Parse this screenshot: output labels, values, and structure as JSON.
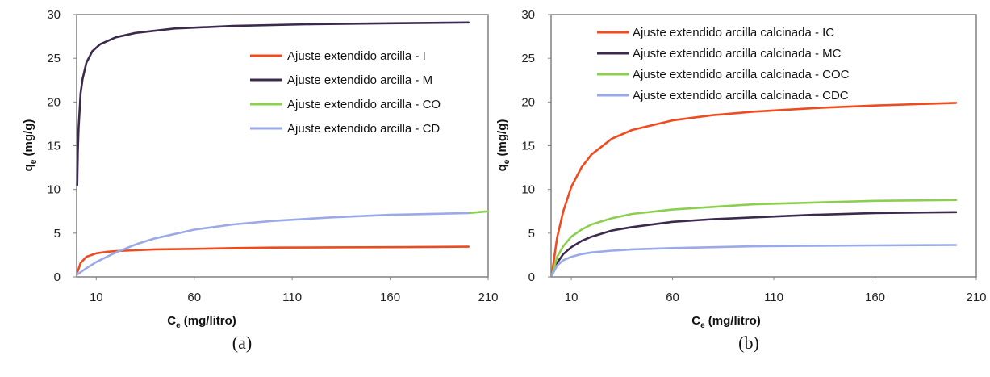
{
  "chart_data": [
    {
      "type": "line",
      "panel_label": "(a)",
      "xlabel_main": "C",
      "xlabel_sub": "e",
      "xlabel_unit": " (mg/litro)",
      "ylabel_main": "q",
      "ylabel_sub": "e",
      "ylabel_unit": " (mg/g)",
      "xlim": [
        0,
        210
      ],
      "ylim": [
        0,
        30
      ],
      "xticks": [
        "10",
        "60",
        "110",
        "160",
        "210"
      ],
      "yticks": [
        "0",
        "5",
        "10",
        "15",
        "20",
        "25",
        "30"
      ],
      "legend_position": "top-right",
      "series": [
        {
          "name": "Ajuste extendido arcilla  - I",
          "color": "#ee4b1e",
          "x": [
            0.5,
            2,
            5,
            10,
            15,
            20,
            30,
            40,
            60,
            80,
            100,
            130,
            160,
            200
          ],
          "y": [
            0.6,
            1.6,
            2.3,
            2.7,
            2.85,
            2.95,
            3.05,
            3.15,
            3.2,
            3.3,
            3.35,
            3.38,
            3.4,
            3.45
          ]
        },
        {
          "name": "Ajuste extendido arcilla  - M",
          "color": "#3b2a4d",
          "x": [
            0.3,
            0.6,
            1,
            2,
            3,
            5,
            8,
            12,
            20,
            30,
            50,
            80,
            120,
            160,
            200
          ],
          "y": [
            10.5,
            14.5,
            17.0,
            21.0,
            22.6,
            24.5,
            25.8,
            26.6,
            27.4,
            27.9,
            28.4,
            28.7,
            28.9,
            29.0,
            29.1
          ]
        },
        {
          "name": "Ajuste extendido arcilla  - CO",
          "color": "#8ccf4e",
          "x": [
            200,
            205,
            210
          ],
          "y": [
            7.3,
            7.4,
            7.5
          ]
        },
        {
          "name": "Ajuste extendido arcilla  - CD",
          "color": "#9aa9e8",
          "x": [
            0.5,
            5,
            10,
            20,
            30,
            40,
            60,
            80,
            100,
            130,
            160,
            200
          ],
          "y": [
            0.3,
            1.0,
            1.7,
            2.8,
            3.7,
            4.4,
            5.4,
            6.0,
            6.4,
            6.8,
            7.1,
            7.3
          ]
        }
      ]
    },
    {
      "type": "line",
      "panel_label": "(b)",
      "xlabel_main": "C",
      "xlabel_sub": "e",
      "xlabel_unit": " (mg/litro)",
      "ylabel_main": "q",
      "ylabel_sub": "e",
      "ylabel_unit": " (mg/g)",
      "xlim": [
        0,
        210
      ],
      "ylim": [
        0,
        30
      ],
      "xticks": [
        "10",
        "60",
        "110",
        "160",
        "210"
      ],
      "yticks": [
        "0",
        "5",
        "10",
        "15",
        "20",
        "25",
        "30"
      ],
      "legend_position": "top",
      "series": [
        {
          "name": "Ajuste extendido arcilla calcinada  - IC",
          "color": "#ee4b1e",
          "x": [
            0.5,
            3,
            6,
            10,
            15,
            20,
            30,
            40,
            60,
            80,
            100,
            130,
            160,
            200
          ],
          "y": [
            0.5,
            4.5,
            7.5,
            10.3,
            12.5,
            14.0,
            15.8,
            16.8,
            17.9,
            18.5,
            18.9,
            19.3,
            19.6,
            19.9
          ]
        },
        {
          "name": "Ajuste extendido arcilla calcinada  - MC",
          "color": "#3b2a4d",
          "x": [
            0.5,
            3,
            6,
            10,
            15,
            20,
            30,
            40,
            60,
            80,
            100,
            130,
            160,
            200
          ],
          "y": [
            0.2,
            1.6,
            2.6,
            3.4,
            4.1,
            4.6,
            5.3,
            5.7,
            6.3,
            6.6,
            6.8,
            7.1,
            7.3,
            7.4
          ]
        },
        {
          "name": "Ajuste extendido arcilla calcinada  - COC",
          "color": "#8ccf4e",
          "x": [
            0.5,
            3,
            6,
            10,
            15,
            20,
            30,
            40,
            60,
            80,
            100,
            130,
            160,
            200
          ],
          "y": [
            0.3,
            2.3,
            3.5,
            4.6,
            5.4,
            6.0,
            6.7,
            7.2,
            7.7,
            8.0,
            8.3,
            8.5,
            8.7,
            8.8
          ]
        },
        {
          "name": "Ajuste extendido arcilla calcinada  - CDC",
          "color": "#9aa9e8",
          "x": [
            0.5,
            3,
            6,
            10,
            15,
            20,
            30,
            40,
            60,
            80,
            100,
            130,
            160,
            200
          ],
          "y": [
            0.2,
            1.3,
            1.9,
            2.3,
            2.6,
            2.8,
            3.0,
            3.15,
            3.3,
            3.4,
            3.5,
            3.55,
            3.6,
            3.65
          ]
        }
      ]
    }
  ]
}
